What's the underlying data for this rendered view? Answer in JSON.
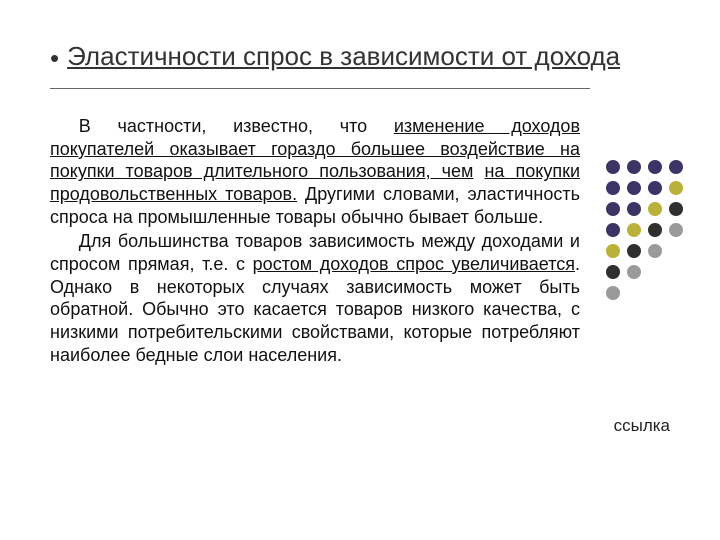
{
  "title_bullet": "•",
  "title": "Эластичности спрос в зависимости от дохода",
  "p1_lead": "В частности, известно, что ",
  "p1_u1": "изменение доходов покупателей оказывает гораздо большее воздействие на покупки товаров длительного пользования, чем",
  "p1_mid": " ",
  "p1_u2": "на покупки продовольственных товаров.",
  "p1_tail": " Другими словами, эластичность спроса на промышленные товары обычно бывает больше.",
  "p2_lead": "Для большинства товаров зависимость между доходами и спросом прямая, т.е. с ",
  "p2_u1": "ростом доходов спрос увеличивается",
  "p2_tail": ". Однако в некоторых случаях зависимость может быть обратной. Обычно это касается товаров низкого качества, с низкими потребительскими свойствами, которые потребляют наиболее бедные слои населения.",
  "link_label": "ссылка",
  "dots": {
    "colors": [
      "#3b3566",
      "#3b3566",
      "#3b3566",
      "#3b3566",
      "#3b3566",
      "#3b3566",
      "#3b3566",
      "#b9b13a",
      "#3b3566",
      "#3b3566",
      "#b9b13a",
      "#2f2f2f",
      "#3b3566",
      "#b9b13a",
      "#2f2f2f",
      "#9a9a9a",
      "#b9b13a",
      "#2f2f2f",
      "#9a9a9a",
      "#ffffff",
      "#2f2f2f",
      "#9a9a9a",
      "#ffffff",
      "#ffffff",
      "#9a9a9a",
      "#ffffff",
      "#ffffff",
      "#ffffff"
    ],
    "rows": 7,
    "cols": 4,
    "visible": [
      1,
      1,
      1,
      1,
      1,
      1,
      1,
      1,
      1,
      1,
      1,
      1,
      1,
      1,
      1,
      1,
      1,
      1,
      1,
      0,
      1,
      1,
      0,
      0,
      1,
      0,
      0,
      0
    ]
  },
  "styling": {
    "background": "#ffffff",
    "title_fontsize": 26,
    "body_fontsize": 18,
    "hr_color": "#666666",
    "dot_size": 14
  }
}
